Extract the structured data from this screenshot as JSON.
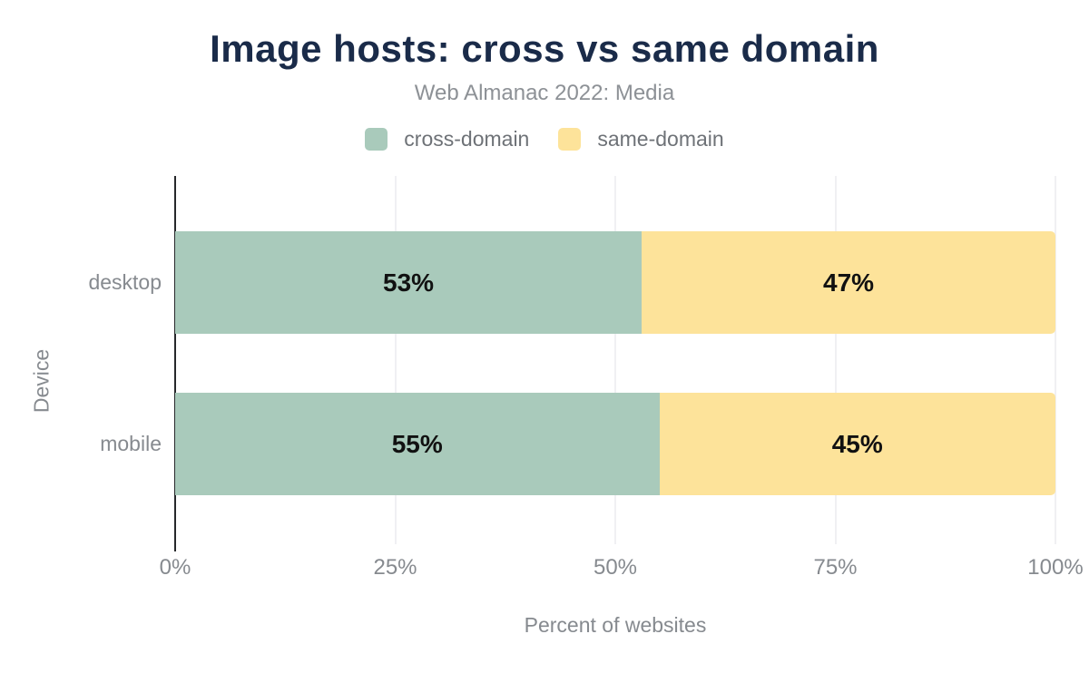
{
  "chart_data": {
    "type": "bar",
    "orientation": "horizontal",
    "stacked": true,
    "title": "Image hosts: cross vs same domain",
    "subtitle": "Web Almanac 2022: Media",
    "xlabel": "Percent of websites",
    "ylabel": "Device",
    "categories": [
      "desktop",
      "mobile"
    ],
    "series": [
      {
        "name": "cross-domain",
        "color": "#a9cabb",
        "values": [
          53,
          55
        ],
        "labels": [
          "53%",
          "55%"
        ]
      },
      {
        "name": "same-domain",
        "color": "#fde39a",
        "values": [
          47,
          45
        ],
        "labels": [
          "47%",
          "45%"
        ]
      }
    ],
    "xlim": [
      0,
      100
    ],
    "xticks": [
      {
        "label": "0%",
        "value": 0
      },
      {
        "label": "25%",
        "value": 25
      },
      {
        "label": "50%",
        "value": 50
      },
      {
        "label": "75%",
        "value": 75
      },
      {
        "label": "100%",
        "value": 100
      }
    ],
    "grid": true,
    "legend_position": "top",
    "colors": {
      "title": "#1a2b49",
      "subtitle": "#8d9196",
      "axis_text": "#868a8f",
      "legend_text": "#6e7277",
      "data_label": "#111111",
      "gridline": "#f0f0f3",
      "axis_line": "#26282b",
      "background": "#ffffff"
    }
  }
}
